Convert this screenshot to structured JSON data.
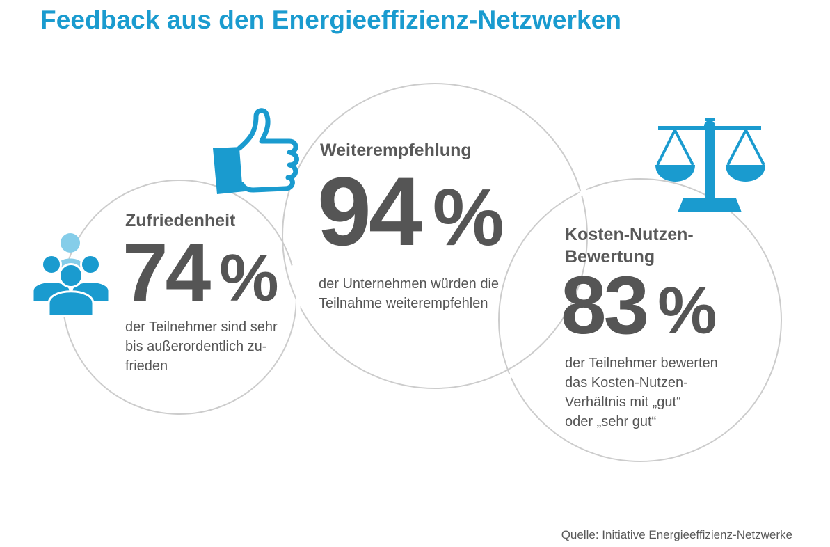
{
  "header": {
    "title": "Feedback aus den Energieeffizienz-Netzwerken"
  },
  "stats": [
    {
      "label": "Zufriedenheit",
      "value": "74",
      "unit": "%",
      "description_lines": [
        "der Teilnehmer sind sehr",
        "bis außerordentlich zu-",
        "frieden"
      ],
      "icon": "people-group-icon"
    },
    {
      "label": "Weiterempfehlung",
      "value": "94",
      "unit": "%",
      "description_lines": [
        "der Unternehmen würden die",
        "Teilnahme weiterempfehlen"
      ],
      "icon": "thumbs-up-icon"
    },
    {
      "label_lines": [
        "Kosten-Nutzen-",
        "Bewertung"
      ],
      "value": "83",
      "unit": "%",
      "description_lines": [
        "der Teilnehmer bewerten",
        "das Kosten-Nutzen-",
        "Verhältnis mit „gut“",
        "oder „sehr gut“"
      ],
      "icon": "scale-icon"
    }
  ],
  "footer": {
    "source": "Quelle: Initiative Energieeffizienz-Netzwerke"
  },
  "colors": {
    "accent": "#1a9bcf",
    "accent_light": "#85cde9",
    "text": "#555555",
    "outline": "#cccccc"
  }
}
